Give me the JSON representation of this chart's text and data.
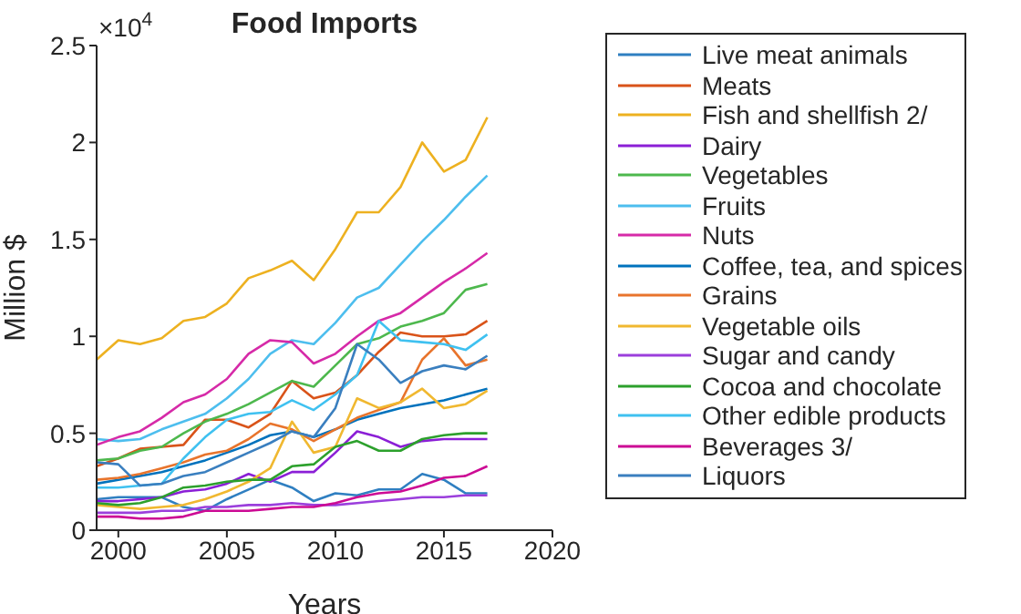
{
  "chart_data": {
    "type": "line",
    "title": "Food Imports",
    "xlabel": "Years",
    "ylabel": "Million $",
    "annotations": [
      "×10$^{4}$"
    ],
    "x": [
      1999,
      2000,
      2001,
      2002,
      2003,
      2004,
      2005,
      2006,
      2007,
      2008,
      2009,
      2010,
      2011,
      2012,
      2013,
      2014,
      2015,
      2016,
      2017
    ],
    "xlim": [
      1999,
      2020
    ],
    "xticks": [
      2000,
      2005,
      2010,
      2015,
      2020
    ],
    "ylim": [
      0,
      2.5
    ],
    "yticks": [
      0,
      0.5,
      1,
      1.5,
      2,
      2.5
    ],
    "grid": false,
    "legend": "right",
    "series": [
      {
        "name": "Live meat animals",
        "color": "#2f7fc1",
        "values": [
          0.16,
          0.17,
          0.17,
          0.17,
          0.12,
          0.1,
          0.16,
          0.21,
          0.26,
          0.22,
          0.15,
          0.19,
          0.18,
          0.21,
          0.21,
          0.29,
          0.26,
          0.19,
          0.19
        ]
      },
      {
        "name": "Meats",
        "color": "#d95319",
        "values": [
          0.33,
          0.37,
          0.42,
          0.43,
          0.44,
          0.57,
          0.57,
          0.53,
          0.6,
          0.77,
          0.68,
          0.71,
          0.8,
          0.92,
          1.02,
          1.0,
          1.0,
          1.01,
          1.08
        ]
      },
      {
        "name": "Fish and shellfish 2/",
        "color": "#edb120",
        "values": [
          0.88,
          0.98,
          0.96,
          0.99,
          1.08,
          1.1,
          1.17,
          1.3,
          1.34,
          1.39,
          1.29,
          1.45,
          1.64,
          1.64,
          1.77,
          2.0,
          1.85,
          1.91,
          2.13
        ]
      },
      {
        "name": "Dairy",
        "color": "#8b1fd6",
        "values": [
          0.15,
          0.15,
          0.16,
          0.17,
          0.2,
          0.21,
          0.24,
          0.29,
          0.25,
          0.3,
          0.3,
          0.4,
          0.51,
          0.48,
          0.43,
          0.46,
          0.47,
          0.47,
          0.47
        ]
      },
      {
        "name": "Vegetables",
        "color": "#4db84d",
        "values": [
          0.36,
          0.37,
          0.41,
          0.43,
          0.5,
          0.56,
          0.6,
          0.65,
          0.71,
          0.77,
          0.74,
          0.85,
          0.96,
          0.99,
          1.05,
          1.08,
          1.12,
          1.24,
          1.27
        ]
      },
      {
        "name": "Fruits",
        "color": "#4dbeee",
        "values": [
          0.47,
          0.46,
          0.47,
          0.52,
          0.56,
          0.6,
          0.68,
          0.78,
          0.91,
          0.98,
          0.96,
          1.07,
          1.2,
          1.25,
          1.37,
          1.49,
          1.6,
          1.72,
          1.83
        ]
      },
      {
        "name": "Nuts",
        "color": "#d62aa8",
        "values": [
          0.44,
          0.48,
          0.51,
          0.58,
          0.66,
          0.7,
          0.78,
          0.91,
          0.98,
          0.97,
          0.86,
          0.91,
          1.0,
          1.08,
          1.12,
          1.2,
          1.28,
          1.35,
          1.43
        ]
      },
      {
        "name": "Coffee, tea, and spices",
        "color": "#0072bd",
        "values": [
          0.24,
          0.26,
          0.28,
          0.3,
          0.33,
          0.36,
          0.4,
          0.44,
          0.49,
          0.51,
          0.48,
          0.52,
          0.57,
          0.6,
          0.63,
          0.65,
          0.67,
          0.7,
          0.73
        ]
      },
      {
        "name": "Grains",
        "color": "#e8742c",
        "values": [
          0.26,
          0.27,
          0.29,
          0.32,
          0.35,
          0.39,
          0.41,
          0.47,
          0.55,
          0.52,
          0.46,
          0.52,
          0.58,
          0.62,
          0.66,
          0.88,
          0.99,
          0.85,
          0.88
        ]
      },
      {
        "name": "Vegetable oils",
        "color": "#f0b830",
        "values": [
          0.13,
          0.12,
          0.11,
          0.12,
          0.13,
          0.16,
          0.2,
          0.25,
          0.32,
          0.56,
          0.4,
          0.43,
          0.68,
          0.63,
          0.66,
          0.73,
          0.63,
          0.65,
          0.72
        ]
      },
      {
        "name": "Sugar and candy",
        "color": "#9b3fdc",
        "values": [
          0.09,
          0.09,
          0.09,
          0.1,
          0.1,
          0.12,
          0.12,
          0.13,
          0.13,
          0.14,
          0.13,
          0.13,
          0.14,
          0.15,
          0.16,
          0.17,
          0.17,
          0.18,
          0.18
        ]
      },
      {
        "name": "Cocoa and chocolate",
        "color": "#2ca02c",
        "values": [
          0.14,
          0.13,
          0.14,
          0.17,
          0.22,
          0.23,
          0.25,
          0.26,
          0.26,
          0.33,
          0.34,
          0.43,
          0.46,
          0.41,
          0.41,
          0.47,
          0.49,
          0.5,
          0.5
        ]
      },
      {
        "name": "Other edible products",
        "color": "#3fc1f0",
        "values": [
          0.22,
          0.22,
          0.23,
          0.24,
          0.37,
          0.48,
          0.57,
          0.6,
          0.61,
          0.67,
          0.62,
          0.7,
          0.8,
          1.08,
          0.98,
          0.97,
          0.96,
          0.93,
          1.01
        ]
      },
      {
        "name": "Beverages 3/",
        "color": "#cc0a94",
        "values": [
          0.07,
          0.07,
          0.06,
          0.06,
          0.07,
          0.1,
          0.1,
          0.1,
          0.11,
          0.12,
          0.12,
          0.14,
          0.17,
          0.19,
          0.2,
          0.23,
          0.27,
          0.28,
          0.33
        ]
      },
      {
        "name": "Liquors",
        "color": "#3a7fbf",
        "values": [
          0.35,
          0.34,
          0.23,
          0.24,
          0.28,
          0.3,
          0.35,
          0.4,
          0.45,
          0.51,
          0.48,
          0.63,
          0.96,
          0.88,
          0.76,
          0.82,
          0.85,
          0.83,
          0.9
        ]
      }
    ]
  }
}
